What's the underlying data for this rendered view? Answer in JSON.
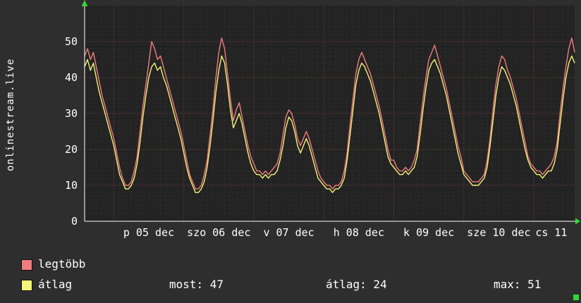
{
  "title": "onlinestream.live",
  "colors": {
    "background": "#2e2e2e",
    "plot_bg": "#232323",
    "grid_minor": "#464646",
    "grid_major": "#8a4444",
    "axis": "#ffffff",
    "arrow": "#33d633",
    "text": "#ffffff"
  },
  "legend": [
    {
      "label": "legtöbb",
      "color": "#ef7d7d"
    },
    {
      "label": "átlag",
      "color": "#f4f478"
    }
  ],
  "stats": [
    {
      "text": "most: 47"
    },
    {
      "text": "átlag: 24"
    },
    {
      "text": "max: 51"
    }
  ],
  "chart_data": {
    "type": "line",
    "title": "onlinestream.live",
    "ylabel": "onlinestream.live",
    "xlabel": "",
    "grid": {
      "minor_x_step": 2,
      "minor_x_offset": 2,
      "minor_y_step": 2,
      "major_y_step": 10
    },
    "ylim": [
      0,
      60
    ],
    "y_ticks": [
      0,
      10,
      20,
      30,
      40,
      50
    ],
    "x_total_hours": 168,
    "x_day_boundaries": [
      10,
      34,
      58,
      82,
      106,
      130,
      154
    ],
    "x_tick_hours": [
      22,
      46,
      70,
      94,
      118,
      142,
      160
    ],
    "x_tick_labels": [
      "p 05 dec",
      "szo 06 dec",
      "v 07 dec",
      "h 08 dec",
      "k 09 dec",
      "sze 10 dec",
      "cs 11"
    ],
    "legend_position": "bottom-left",
    "series": [
      {
        "name": "legtöbb",
        "color": "#ef7d7d",
        "values": [
          46,
          48,
          45,
          47,
          43,
          39,
          35,
          32,
          29,
          26,
          23,
          19,
          15,
          12,
          10,
          10,
          11,
          14,
          18,
          25,
          32,
          38,
          44,
          50,
          48,
          45,
          46,
          43,
          40,
          37,
          34,
          31,
          28,
          25,
          21,
          17,
          13,
          11,
          9,
          9,
          10,
          13,
          17,
          24,
          31,
          40,
          47,
          51,
          48,
          41,
          34,
          28,
          31,
          33,
          29,
          25,
          21,
          18,
          16,
          14,
          14,
          13,
          14,
          13,
          14,
          15,
          16,
          19,
          24,
          29,
          31,
          30,
          27,
          23,
          21,
          23,
          25,
          23,
          20,
          17,
          14,
          12,
          11,
          10,
          10,
          9,
          10,
          10,
          11,
          14,
          19,
          27,
          34,
          41,
          45,
          47,
          45,
          43,
          41,
          38,
          35,
          32,
          28,
          24,
          20,
          17,
          17,
          15,
          14,
          14,
          15,
          14,
          15,
          17,
          20,
          27,
          34,
          40,
          45,
          47,
          49,
          46,
          43,
          40,
          37,
          33,
          29,
          25,
          21,
          18,
          14,
          13,
          12,
          11,
          11,
          11,
          12,
          13,
          17,
          23,
          31,
          38,
          43,
          46,
          45,
          42,
          40,
          37,
          34,
          30,
          26,
          22,
          18,
          16,
          15,
          14,
          14,
          13,
          14,
          15,
          16,
          18,
          22,
          30,
          37,
          43,
          48,
          51,
          47
        ]
      },
      {
        "name": "átlag",
        "color": "#f4f478",
        "values": [
          43,
          45,
          42,
          44,
          40,
          36,
          33,
          30,
          27,
          24,
          21,
          17,
          13,
          11,
          9,
          9,
          10,
          12,
          16,
          22,
          29,
          35,
          40,
          43,
          44,
          42,
          43,
          40,
          38,
          35,
          32,
          29,
          26,
          23,
          19,
          15,
          12,
          10,
          8,
          8,
          9,
          11,
          15,
          21,
          28,
          36,
          42,
          46,
          44,
          38,
          31,
          26,
          28,
          30,
          27,
          23,
          19,
          16,
          14,
          13,
          13,
          12,
          13,
          12,
          13,
          13,
          14,
          17,
          21,
          26,
          29,
          28,
          25,
          21,
          19,
          21,
          23,
          21,
          18,
          15,
          12,
          11,
          10,
          9,
          9,
          8,
          9,
          9,
          10,
          12,
          17,
          24,
          31,
          38,
          42,
          44,
          43,
          41,
          39,
          36,
          33,
          30,
          26,
          22,
          18,
          16,
          15,
          14,
          13,
          13,
          14,
          13,
          14,
          15,
          18,
          24,
          31,
          37,
          42,
          44,
          45,
          43,
          41,
          38,
          35,
          31,
          27,
          23,
          19,
          16,
          13,
          12,
          11,
          10,
          10,
          10,
          11,
          12,
          15,
          21,
          28,
          35,
          40,
          43,
          42,
          40,
          38,
          35,
          32,
          28,
          24,
          20,
          17,
          15,
          14,
          13,
          13,
          12,
          13,
          14,
          14,
          16,
          20,
          27,
          34,
          40,
          44,
          46,
          44
        ]
      }
    ],
    "stats_row": {
      "most": 47,
      "atlag": 24,
      "max": 51
    }
  }
}
